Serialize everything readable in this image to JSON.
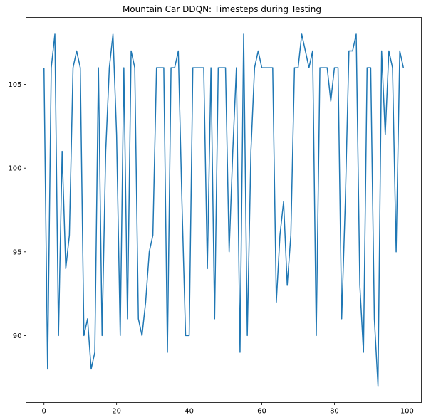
{
  "chart_data": {
    "type": "line",
    "title": "Mountain Car DDQN: Timesteps during Testing",
    "xlabel": "",
    "ylabel": "",
    "xlim": [
      -4.95,
      103.95
    ],
    "ylim": [
      86.0,
      109.0
    ],
    "xticks": [
      0,
      20,
      40,
      60,
      80,
      100
    ],
    "yticks": [
      90,
      95,
      100,
      105
    ],
    "grid": false,
    "series": [
      {
        "color": "#1f77b4",
        "x": [
          0,
          1,
          2,
          3,
          4,
          5,
          6,
          7,
          8,
          9,
          10,
          11,
          12,
          13,
          14,
          15,
          16,
          17,
          18,
          19,
          20,
          21,
          22,
          23,
          24,
          25,
          26,
          27,
          28,
          29,
          30,
          31,
          32,
          33,
          34,
          35,
          36,
          37,
          38,
          39,
          40,
          41,
          42,
          43,
          44,
          45,
          46,
          47,
          48,
          49,
          50,
          51,
          52,
          53,
          54,
          55,
          56,
          57,
          58,
          59,
          60,
          61,
          62,
          63,
          64,
          65,
          66,
          67,
          68,
          69,
          70,
          71,
          72,
          73,
          74,
          75,
          76,
          77,
          78,
          79,
          80,
          81,
          82,
          83,
          84,
          85,
          86,
          87,
          88,
          89,
          90,
          91,
          92,
          93,
          94,
          95,
          96,
          97,
          98,
          99
        ],
        "y": [
          106,
          88,
          106,
          108,
          90,
          101,
          94,
          96,
          106,
          107,
          106,
          90,
          91,
          88,
          89,
          106,
          90,
          101,
          106,
          108,
          102,
          90,
          106,
          91,
          107,
          106,
          91,
          90,
          92,
          95,
          96,
          106,
          106,
          106,
          89,
          106,
          106,
          107,
          98,
          90,
          90,
          106,
          106,
          106,
          106,
          94,
          106,
          91,
          106,
          106,
          106,
          95,
          101,
          106,
          89,
          108,
          90,
          101,
          106,
          107,
          106,
          106,
          106,
          106,
          92,
          96,
          98,
          93,
          96,
          106,
          106,
          108,
          107,
          106,
          107,
          90,
          106,
          106,
          106,
          104,
          106,
          106,
          91,
          98,
          107,
          107,
          108,
          93,
          89,
          106,
          106,
          91,
          87,
          107,
          102,
          107,
          106,
          95,
          107,
          106
        ]
      }
    ]
  }
}
